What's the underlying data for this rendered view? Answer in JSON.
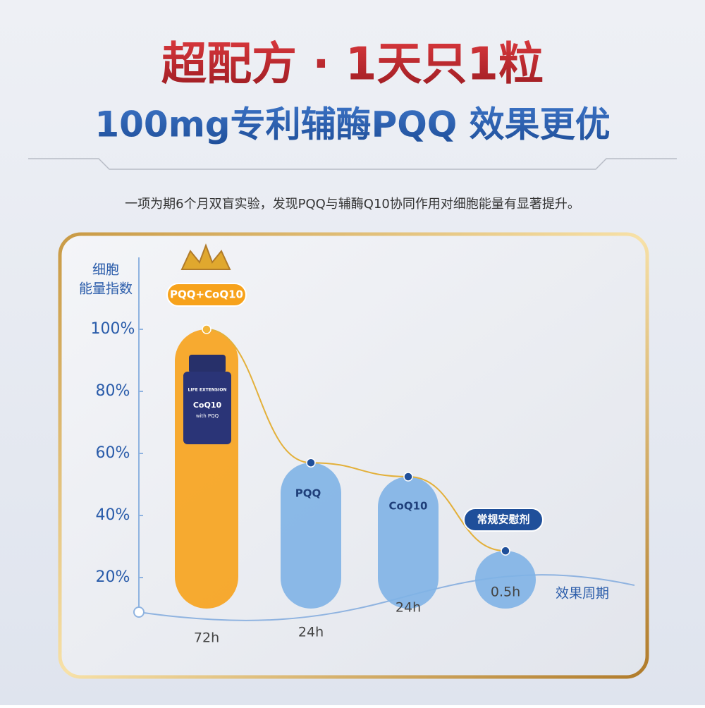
{
  "title": "超配方 · 1天只1粒",
  "subtitle": "100mg专利辅酶PQQ 效果更优",
  "description": "一项为期6个月双盲实验，发现PQQ与辅酶Q10协同作用对细胞能量有显著提升。",
  "chart_data": {
    "type": "bar",
    "y_label": [
      "细胞",
      "能量指数"
    ],
    "x_label": "效果周期",
    "categories": [
      "PQQ+CoQ10",
      "PQQ",
      "CoQ10",
      "常规安慰剂"
    ],
    "durations": [
      "72h",
      "24h",
      "24h",
      "0.5h"
    ],
    "values": [
      100,
      57,
      52.5,
      28.6
    ],
    "colors": [
      "#f7a21b",
      "#7fb2e6",
      "#7fb2e6",
      "#7fb2e6"
    ],
    "line_color": "#e3b03a",
    "ylim": [
      10,
      120
    ],
    "yticks": [
      {
        "value": 20,
        "label": "20%"
      },
      {
        "value": 40,
        "label": "40%"
      },
      {
        "value": 60,
        "label": "60%"
      },
      {
        "value": 80,
        "label": "80%"
      },
      {
        "value": 100,
        "label": "100%"
      }
    ],
    "grid": false
  },
  "product": {
    "brand": "LIFE EXTENSION",
    "name": "CoQ10",
    "note": "with PQQ"
  }
}
